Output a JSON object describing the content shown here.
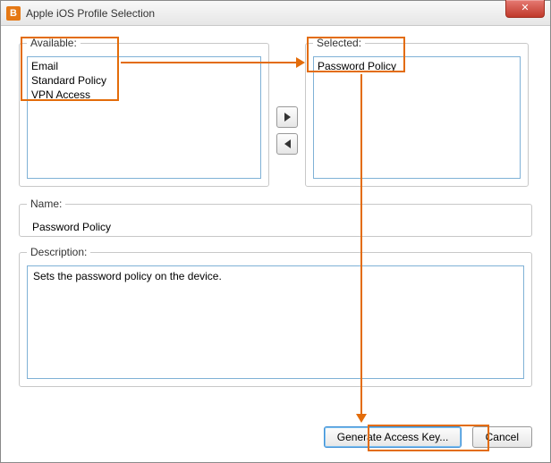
{
  "window": {
    "title": "Apple iOS Profile Selection",
    "icon_letter": "B"
  },
  "groups": {
    "available_label": "Available:",
    "selected_label": "Selected:",
    "name_label": "Name:",
    "description_label": "Description:"
  },
  "available": {
    "items": [
      "Email",
      "Standard Policy",
      "VPN Access"
    ]
  },
  "selected": {
    "items": [
      "Password Policy"
    ]
  },
  "name_value": "Password Policy",
  "description_value": "Sets the password policy on the device.",
  "buttons": {
    "generate": "Generate Access Key...",
    "cancel": "Cancel"
  },
  "annotation_color": "#e36c0a"
}
